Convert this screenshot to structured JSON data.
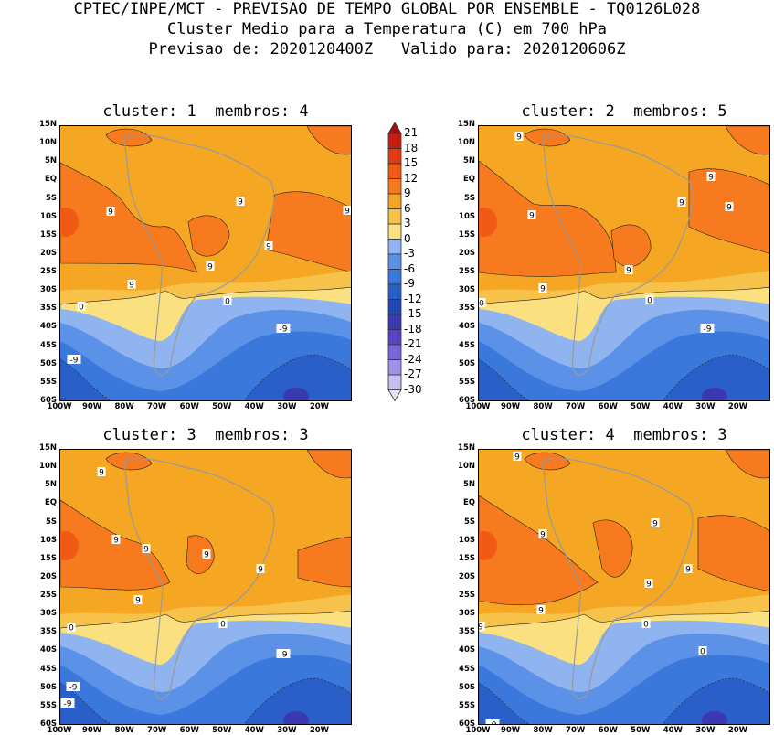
{
  "header": {
    "line1": "CPTEC/INPE/MCT - PREVISAO DE TEMPO GLOBAL POR ENSEMBLE - TQ0126L028",
    "line2": "Cluster Medio para a Temperatura (C) em 700 hPa",
    "line3": "Previsao de: 2020120400Z   Valido para: 2020120606Z"
  },
  "panels": [
    {
      "title": "cluster: 1  membros: 4"
    },
    {
      "title": "cluster: 2  membros: 5"
    },
    {
      "title": "cluster: 3  membros: 3"
    },
    {
      "title": "cluster: 4  membros: 3"
    }
  ],
  "lat_ticks": [
    "15N",
    "10N",
    "5N",
    "EQ",
    "5S",
    "10S",
    "15S",
    "20S",
    "25S",
    "30S",
    "35S",
    "40S",
    "45S",
    "50S",
    "55S",
    "60S"
  ],
  "lon_ticks": [
    "100W",
    "90W",
    "80W",
    "70W",
    "60W",
    "50W",
    "40W",
    "30W",
    "20W"
  ],
  "colorbar": {
    "labels": [
      "21",
      "18",
      "15",
      "12",
      "9",
      "6",
      "3",
      "0",
      "-3",
      "-6",
      "-9",
      "-12",
      "-15",
      "-18",
      "-21",
      "-24",
      "-27",
      "-30"
    ],
    "colors": [
      "#a50f0f",
      "#c81e10",
      "#e23a12",
      "#f05a15",
      "#f77a1e",
      "#f5a623",
      "#f7c24a",
      "#fbe07f",
      "#8fb4f0",
      "#5b92e8",
      "#3a78dc",
      "#2a5fc9",
      "#2147b5",
      "#3b39b0",
      "#5a44c4",
      "#7a66d8",
      "#a090e6",
      "#c8beef",
      "#e6e0f8"
    ]
  },
  "contour_labels": {
    "p1": [
      "9",
      "9",
      "9",
      "9",
      "9",
      "9",
      "0",
      "0",
      "-9",
      "-9"
    ],
    "p2": [
      "9",
      "9",
      "9",
      "9",
      "9",
      "9",
      "9",
      "0",
      "0",
      "-9",
      "-9"
    ],
    "p3": [
      "9",
      "9",
      "9",
      "9",
      "9",
      "9",
      "0",
      "0",
      "-9",
      "-9",
      "-9"
    ],
    "p4": [
      "9",
      "9",
      "9",
      "9",
      "9",
      "9",
      "9",
      "0",
      "0",
      "-9"
    ]
  }
}
